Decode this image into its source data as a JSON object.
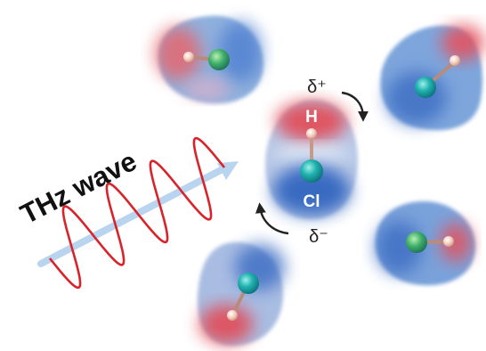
{
  "wave_label": "THz wave",
  "molecule": {
    "h_label": "H",
    "cl_label": "Cl",
    "delta_plus": "δ⁺",
    "delta_minus": "δ⁻"
  },
  "colors": {
    "positive": "#e0505c",
    "negative": "#3f74c6",
    "wave": "#d8232a",
    "wave_arrow": "#b9d4ee",
    "chlorine_atom": "#1ba6a6",
    "hydrogen_atom": "#f2c6b6"
  }
}
